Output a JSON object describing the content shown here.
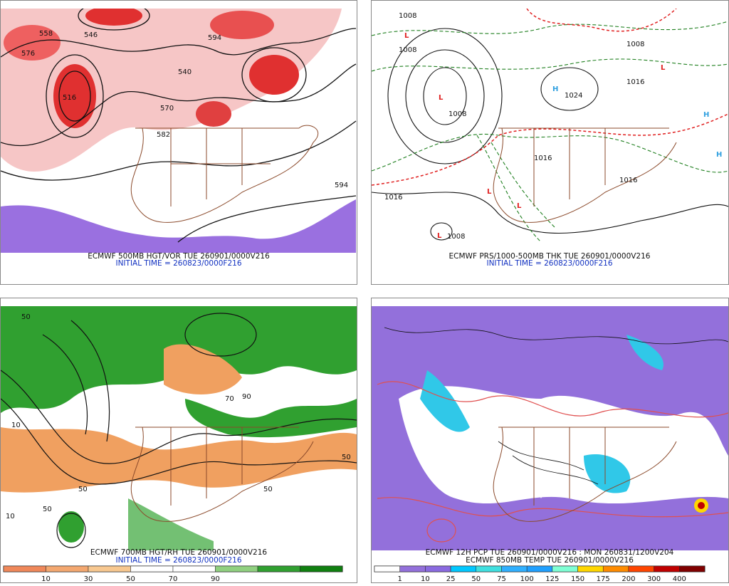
{
  "panels": [
    {
      "title": "ECMWF 500MB HGT/VOR TUE 260901/0000V216",
      "subtitle": "INITIAL TIME = 260823/0000F216",
      "contour_labels": [
        "558",
        "546",
        "516",
        "540",
        "570",
        "582",
        "594",
        "594",
        "576"
      ]
    },
    {
      "title": "ECMWF PRS/1000-500MB THK TUE 260901/0000V216",
      "subtitle": "INITIAL TIME = 260823/0000F216",
      "contour_labels": [
        "1008",
        "1008",
        "1008",
        "1016",
        "1024",
        "1016",
        "1016",
        "1008",
        "1016",
        "1008"
      ]
    },
    {
      "title": "ECMWF 700MB HGT/RH TUE 260901/0000V216",
      "subtitle": "INITIAL TIME = 260823/0000F216",
      "contour_labels": [
        "50",
        "50",
        "10",
        "50",
        "70",
        "50",
        "90",
        "50",
        "10"
      ],
      "colorbar": {
        "ticks": [
          10,
          30,
          50,
          70,
          90
        ],
        "colors": [
          "#f0885a",
          "#f4a870",
          "#f8c890",
          "#ffffff",
          "#ffffff",
          "#90d080",
          "#30a030",
          "#108010"
        ]
      }
    },
    {
      "title": "ECMWF 12H PCP TUE 260901/0000V216 : MON 260831/1200V204",
      "subtitle": "ECMWF 850MB TEMP TUE 260901/0000V216",
      "colorbar": {
        "ticks": [
          1,
          10,
          25,
          50,
          75,
          100,
          125,
          150,
          175,
          200,
          300,
          400
        ],
        "colors": [
          "#ffffff",
          "#9370db",
          "#8a6ae0",
          "#00c8ff",
          "#40e0e0",
          "#30b0ff",
          "#20a0ff",
          "#7fffd4",
          "#ffd700",
          "#ff8c00",
          "#ff4500",
          "#c00000",
          "#800000"
        ]
      }
    }
  ]
}
